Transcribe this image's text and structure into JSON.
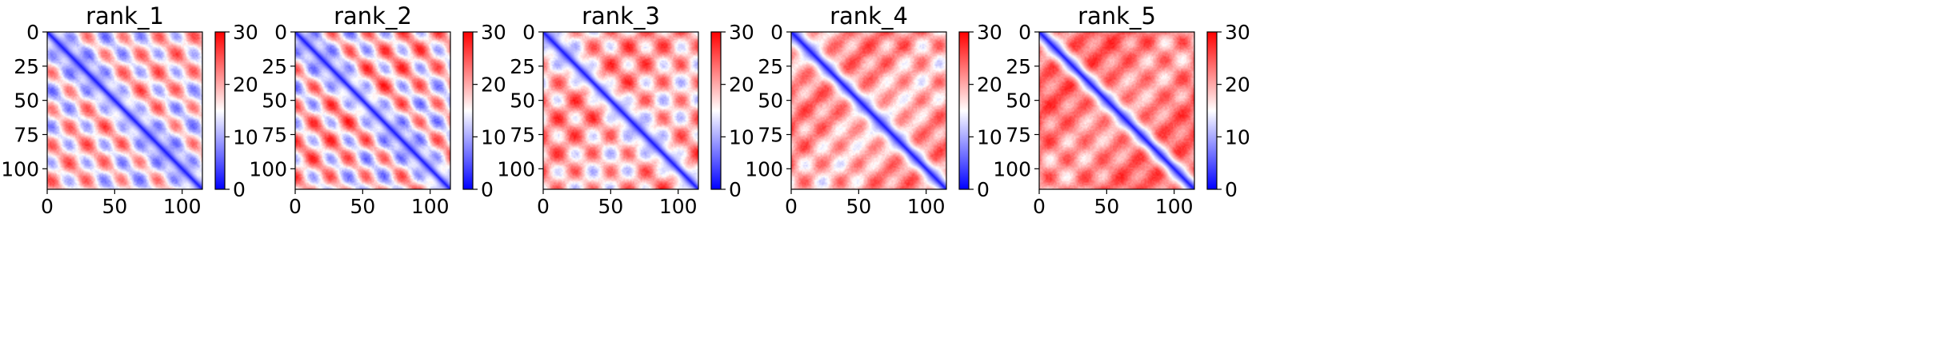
{
  "chart_data": [
    {
      "type": "heatmap",
      "title": "rank_1",
      "xlim": [
        0,
        115
      ],
      "ylim": [
        115,
        0
      ],
      "xticks": [
        "0",
        "50",
        "100"
      ],
      "yticks": [
        "0",
        "25",
        "50",
        "75",
        "100"
      ],
      "colorbar": {
        "min": 0,
        "max": 30,
        "ticks": [
          "0",
          "10",
          "20",
          "30"
        ],
        "colormap": "bwr",
        "low_color": "#0000ff",
        "mid_color": "#ffffff",
        "high_color": "#ff0000"
      }
    },
    {
      "type": "heatmap",
      "title": "rank_2",
      "xlim": [
        0,
        115
      ],
      "ylim": [
        115,
        0
      ],
      "xticks": [
        "0",
        "50",
        "100"
      ],
      "yticks": [
        "0",
        "25",
        "50",
        "75",
        "100"
      ],
      "colorbar": {
        "min": 0,
        "max": 30,
        "ticks": [
          "0",
          "10",
          "20",
          "30"
        ],
        "colormap": "bwr",
        "low_color": "#0000ff",
        "mid_color": "#ffffff",
        "high_color": "#ff0000"
      }
    },
    {
      "type": "heatmap",
      "title": "rank_3",
      "xlim": [
        0,
        115
      ],
      "ylim": [
        115,
        0
      ],
      "xticks": [
        "0",
        "50",
        "100"
      ],
      "yticks": [
        "0",
        "25",
        "50",
        "75",
        "100"
      ],
      "colorbar": {
        "min": 0,
        "max": 30,
        "ticks": [
          "0",
          "10",
          "20",
          "30"
        ],
        "colormap": "bwr",
        "low_color": "#0000ff",
        "mid_color": "#ffffff",
        "high_color": "#ff0000"
      }
    },
    {
      "type": "heatmap",
      "title": "rank_4",
      "xlim": [
        0,
        115
      ],
      "ylim": [
        115,
        0
      ],
      "xticks": [
        "0",
        "50",
        "100"
      ],
      "yticks": [
        "0",
        "25",
        "50",
        "75",
        "100"
      ],
      "colorbar": {
        "min": 0,
        "max": 30,
        "ticks": [
          "0",
          "10",
          "20",
          "30"
        ],
        "colormap": "bwr",
        "low_color": "#0000ff",
        "mid_color": "#ffffff",
        "high_color": "#ff0000"
      }
    },
    {
      "type": "heatmap",
      "title": "rank_5",
      "xlim": [
        0,
        115
      ],
      "ylim": [
        115,
        0
      ],
      "xticks": [
        "0",
        "50",
        "100"
      ],
      "yticks": [
        "0",
        "25",
        "50",
        "75",
        "100"
      ],
      "colorbar": {
        "min": 0,
        "max": 30,
        "ticks": [
          "0",
          "10",
          "20",
          "30"
        ],
        "colormap": "bwr",
        "low_color": "#0000ff",
        "mid_color": "#ffffff",
        "high_color": "#ff0000"
      }
    }
  ]
}
